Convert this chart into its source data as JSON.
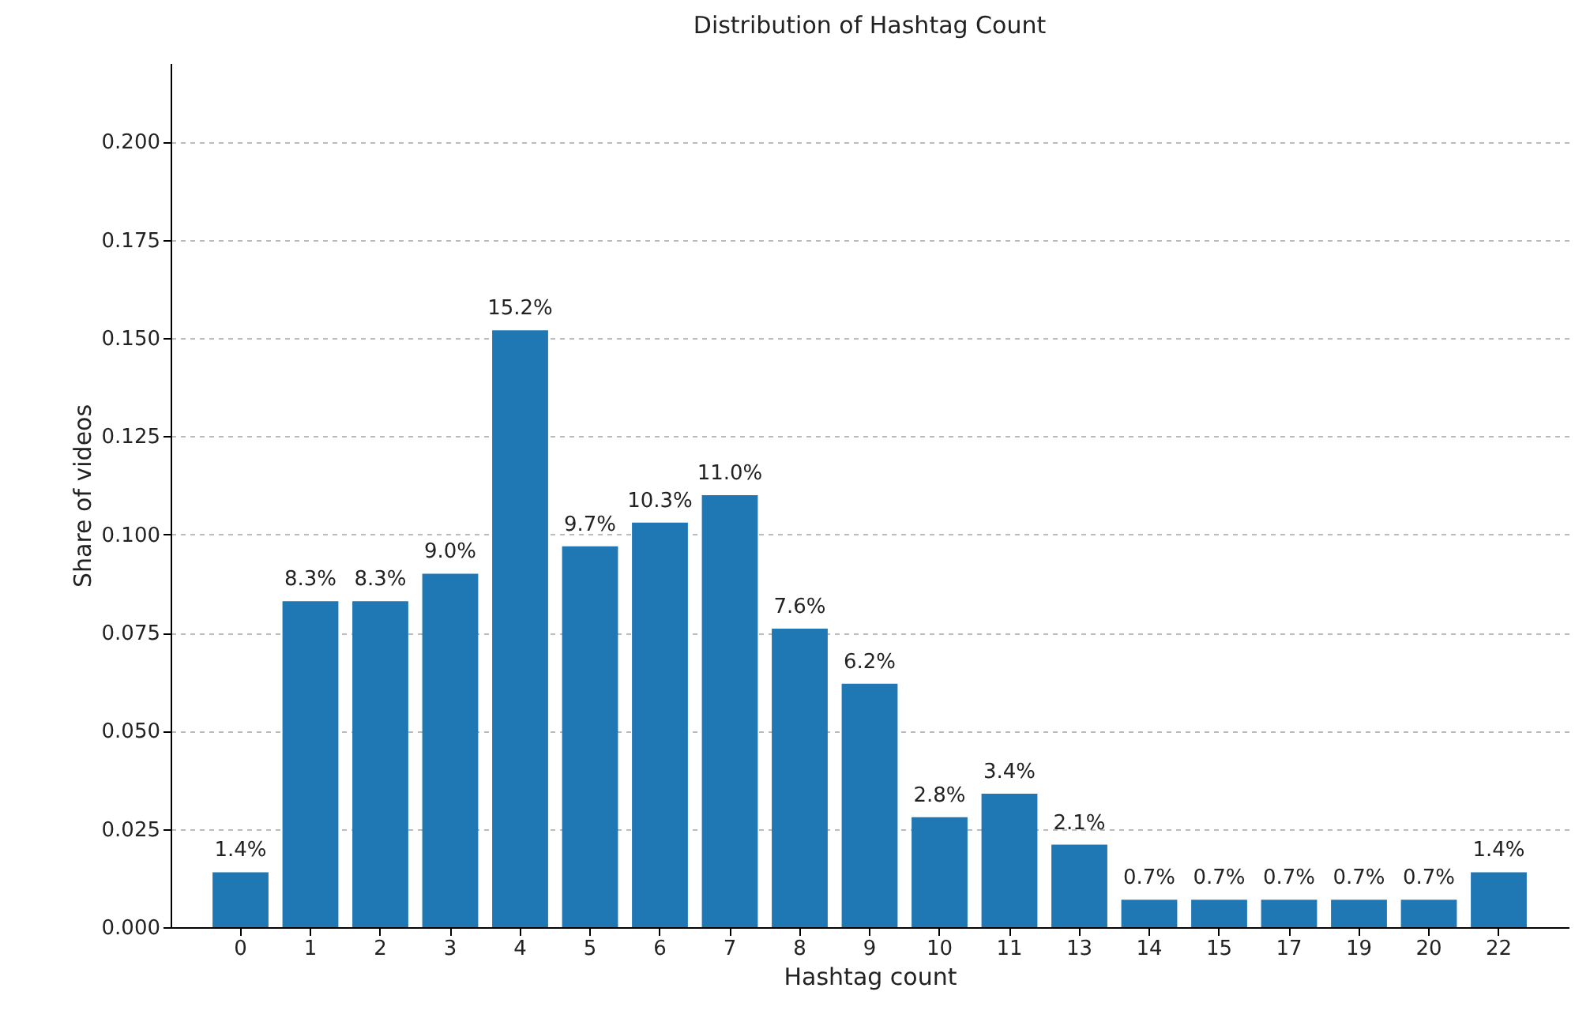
{
  "chart_data": {
    "type": "bar",
    "title": "Distribution of Hashtag Count",
    "xlabel": "Hashtag count",
    "ylabel": "Share of videos",
    "categories": [
      "0",
      "1",
      "2",
      "3",
      "4",
      "5",
      "6",
      "7",
      "8",
      "9",
      "10",
      "11",
      "13",
      "14",
      "15",
      "17",
      "19",
      "20",
      "22"
    ],
    "values": [
      0.014,
      0.083,
      0.083,
      0.09,
      0.152,
      0.097,
      0.103,
      0.11,
      0.076,
      0.062,
      0.028,
      0.034,
      0.021,
      0.007,
      0.007,
      0.007,
      0.007,
      0.007,
      0.014
    ],
    "value_labels": [
      "1.4%",
      "8.3%",
      "8.3%",
      "9.0%",
      "15.2%",
      "9.7%",
      "10.3%",
      "11.0%",
      "7.6%",
      "6.2%",
      "2.8%",
      "3.4%",
      "2.1%",
      "0.7%",
      "0.7%",
      "0.7%",
      "0.7%",
      "0.7%",
      "1.4%"
    ],
    "color": "#1f77b4",
    "ylim": [
      0,
      0.22
    ],
    "yticks": [
      {
        "value": 0,
        "label": "0.000"
      },
      {
        "value": 0.025,
        "label": "0.025"
      },
      {
        "value": 0.05,
        "label": "0.050"
      },
      {
        "value": 0.075,
        "label": "0.075"
      },
      {
        "value": 0.1,
        "label": "0.100"
      },
      {
        "value": 0.125,
        "label": "0.125"
      },
      {
        "value": 0.15,
        "label": "0.150"
      },
      {
        "value": 0.175,
        "label": "0.175"
      },
      {
        "value": 0.2,
        "label": "0.200"
      }
    ],
    "grid": "y"
  }
}
